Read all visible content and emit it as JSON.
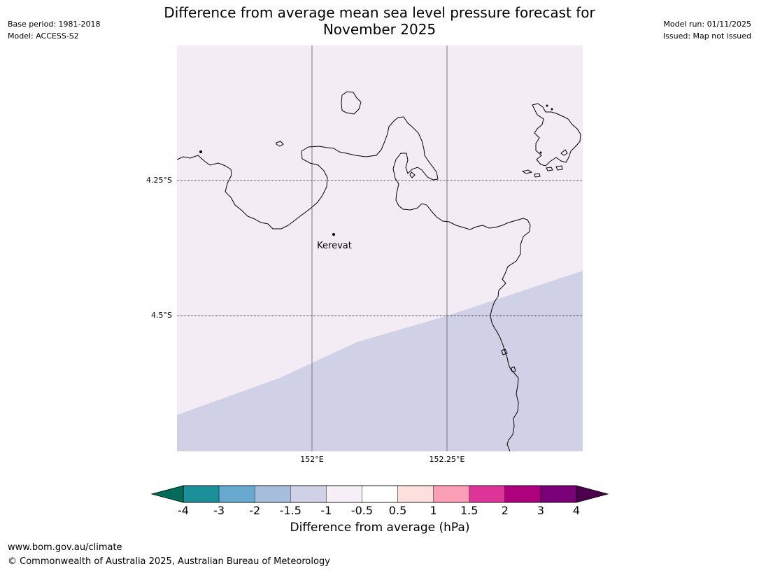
{
  "header": {
    "title_line1": "Difference from average mean sea level pressure forecast for",
    "title_line2": "November 2025",
    "base_period": "Base period: 1981-2018",
    "model": "Model: ACCESS-S2",
    "model_run": "Model run: 01/11/2025",
    "issued": "Issued: Map not issued"
  },
  "map": {
    "place_label": "Kerevat",
    "lat_labels": [
      "4.25°S",
      "4.5°S"
    ],
    "lon_labels": [
      "152°E",
      "152.25°E"
    ],
    "fill_colors": {
      "light": "#f4ecf5",
      "dark": "#d0d1e6"
    },
    "coast_color": "#000000"
  },
  "colorbar": {
    "label": "Difference from average (hPa)",
    "ticks": [
      "-4",
      "-3",
      "-2",
      "-1.5",
      "-1",
      "-0.5",
      "0.5",
      "1",
      "1.5",
      "2",
      "3",
      "4"
    ],
    "low_extend_color": "#016c59",
    "high_extend_color": "#4d004b",
    "colors": [
      "#1c9099",
      "#67a9cf",
      "#a6bddb",
      "#d0d1e6",
      "#f6eff7",
      "#ffffff",
      "#fde0dd",
      "#fa9fb5",
      "#dd3497",
      "#ae017e",
      "#7a0177"
    ]
  },
  "footer": {
    "url": "www.bom.gov.au/climate",
    "copyright": "© Commonwealth of Australia 2025, Australian Bureau of Meteorology"
  }
}
